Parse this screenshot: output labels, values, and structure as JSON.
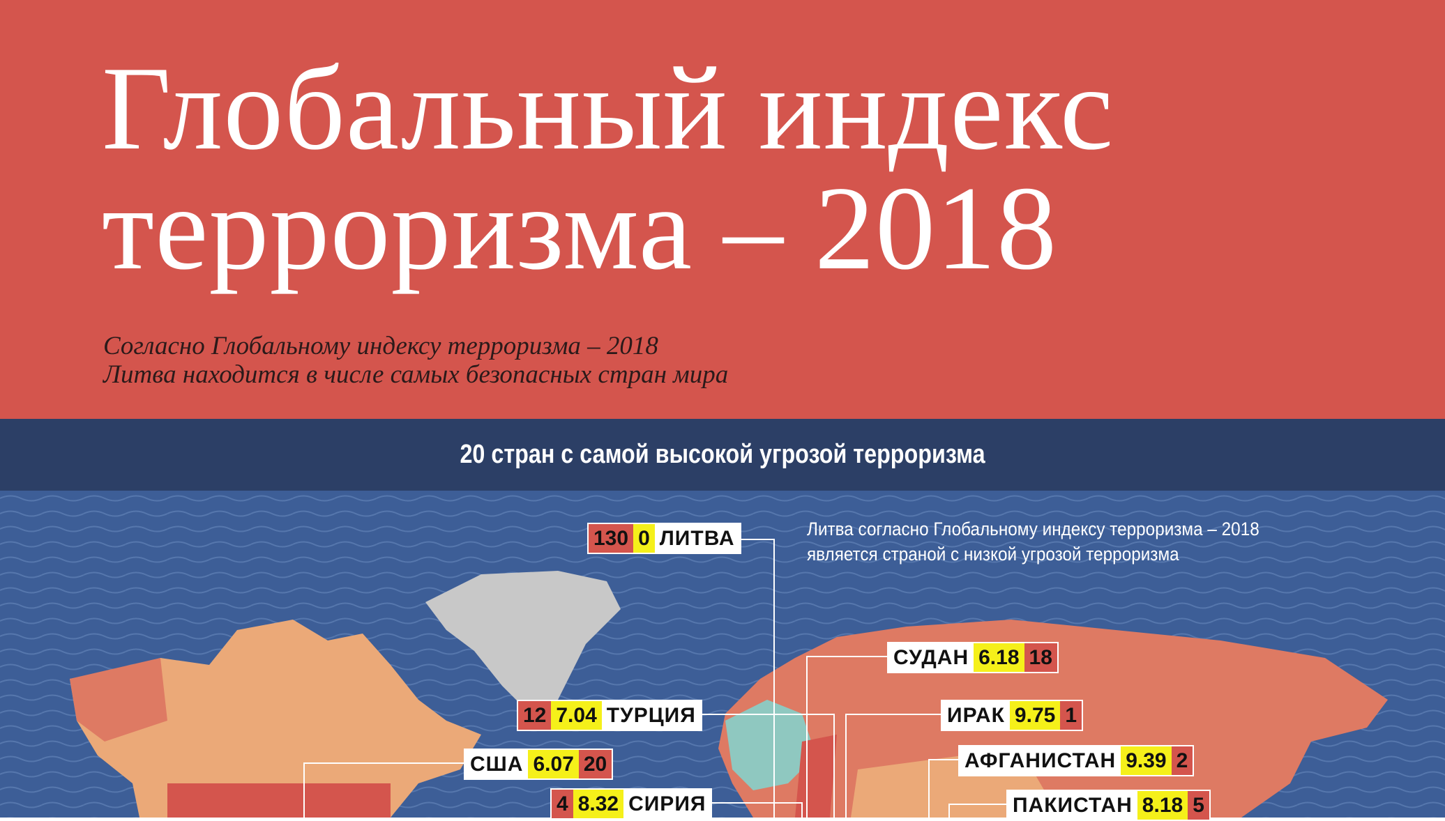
{
  "header": {
    "title": "Глобальный индекс терроризма – 2018",
    "subtitle": [
      "Согласно Глобальному индексу терроризма – 2018",
      "Литва находится в числе самых безопасных стран мира"
    ]
  },
  "banner": "20 стран с самой высокой угрозой терроризма",
  "note": [
    "Литва согласно Глобальному индексу терроризма – 2018",
    "является страной с низкой угрозой терроризма"
  ],
  "labels": [
    {
      "name": "ЛИТВА",
      "score": 0,
      "rank": 130
    },
    {
      "name": "СУДАН",
      "score": 6.18,
      "rank": 18
    },
    {
      "name": "ТУРЦИЯ",
      "score": 7.04,
      "rank": 12
    },
    {
      "name": "ИРАК",
      "score": 9.75,
      "rank": 1
    },
    {
      "name": "США",
      "score": 6.07,
      "rank": 20
    },
    {
      "name": "АФГАНИСТАН",
      "score": 9.39,
      "rank": 2
    },
    {
      "name": "СИРИЯ",
      "score": 8.32,
      "rank": 4
    },
    {
      "name": "ПАКИСТАН",
      "score": 8.18,
      "rank": 5
    }
  ]
}
